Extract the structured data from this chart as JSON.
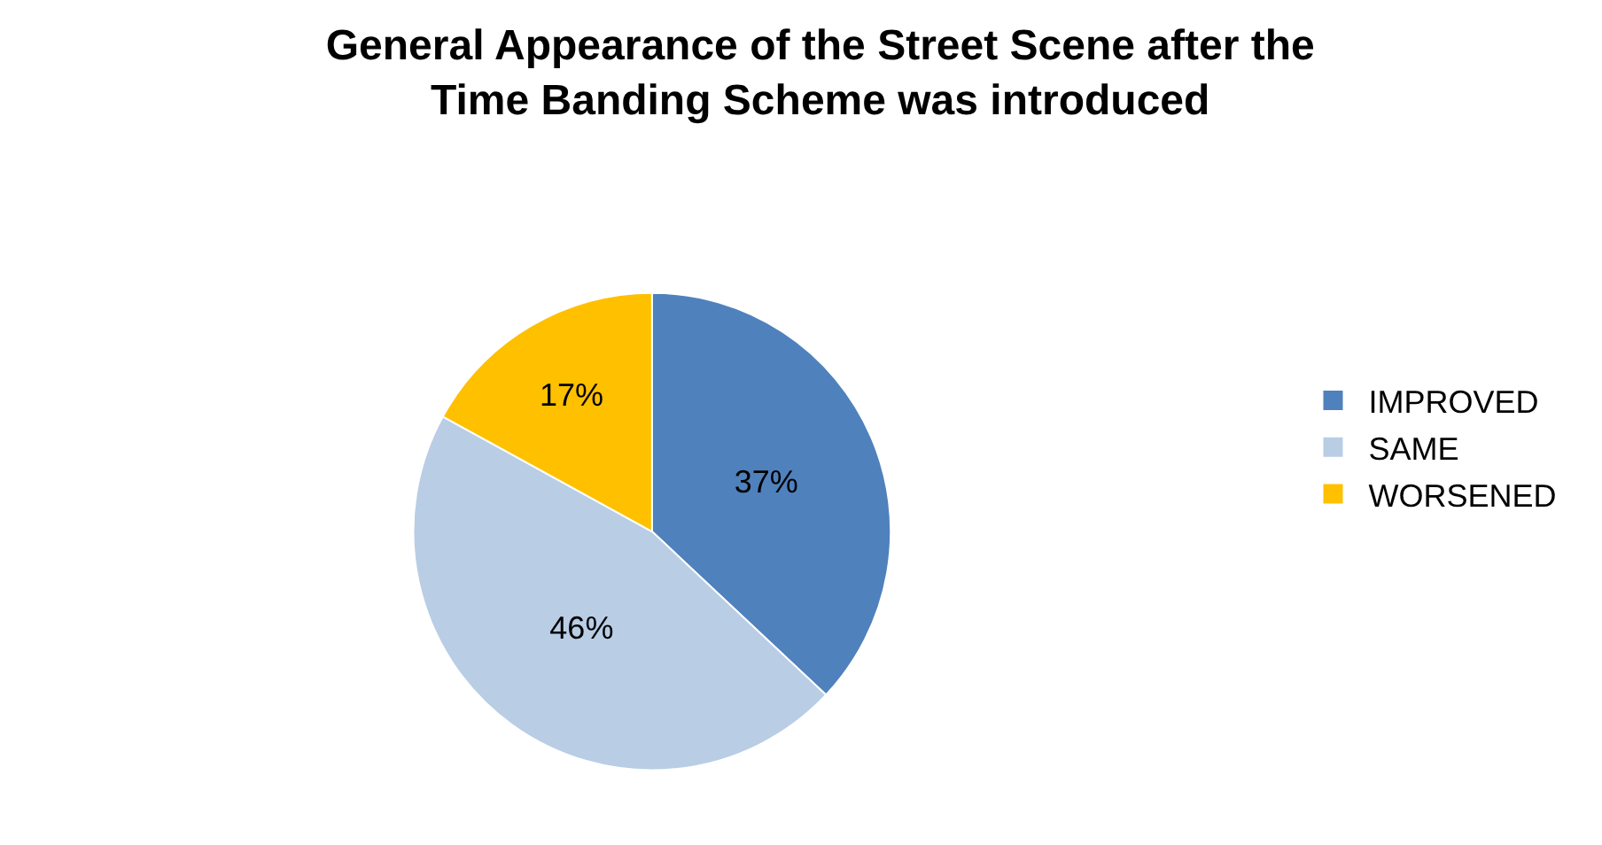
{
  "chart_data": {
    "type": "pie",
    "title": "General Appearance of the Street Scene after the\nTime Banding Scheme was introduced",
    "categories": [
      "IMPROVED",
      "SAME",
      "WORSENED"
    ],
    "values": [
      37,
      46,
      17
    ],
    "value_labels": [
      "37%",
      "46%",
      "17%"
    ],
    "colors": [
      "#4f81bd",
      "#b9cde5",
      "#ffc000"
    ],
    "legend": "right"
  }
}
